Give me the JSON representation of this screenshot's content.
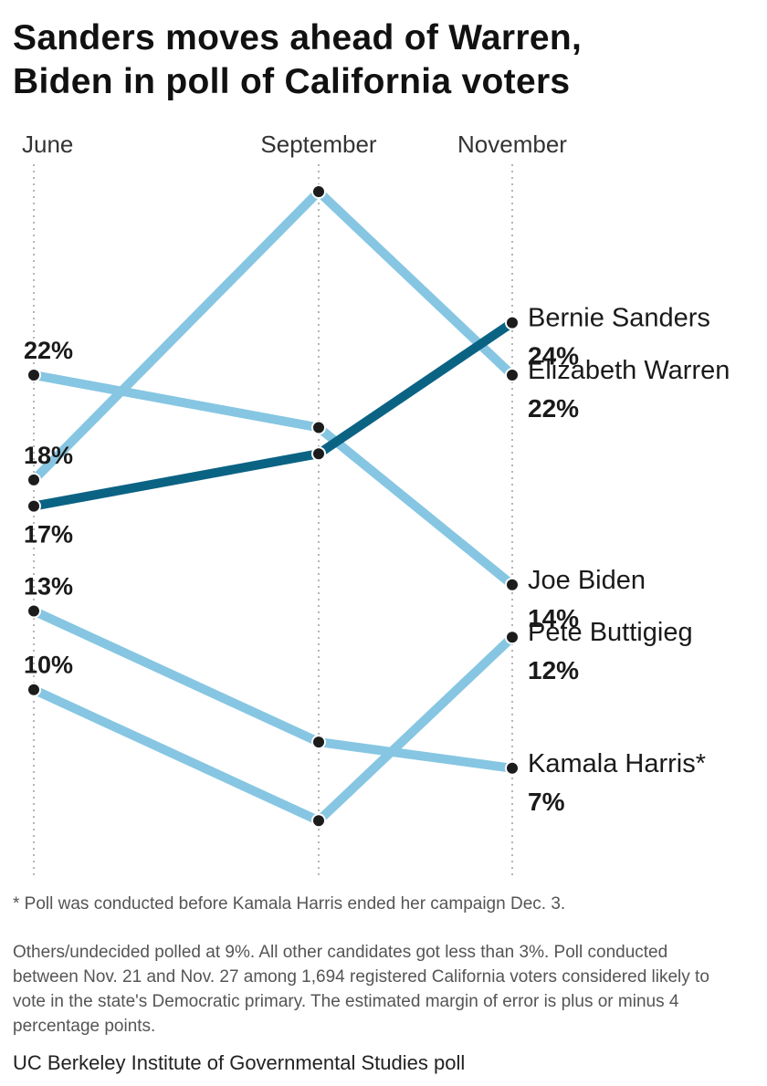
{
  "title_lines": [
    "Sanders moves ahead of Warren,",
    "Biden in poll of California voters"
  ],
  "chart_data": {
    "type": "line",
    "title": "Sanders moves ahead of Warren, Biden in poll of California voters",
    "x": [
      "June",
      "September",
      "November"
    ],
    "series": [
      {
        "name": "Bernie Sanders",
        "values": [
          17,
          19,
          24
        ],
        "color": "#0b6384",
        "highlight": true,
        "start_label": "17%",
        "end_label": "24%"
      },
      {
        "name": "Elizabeth Warren",
        "values": [
          18,
          29,
          22
        ],
        "color": "#86c6e2",
        "start_label": "18%",
        "end_label": "22%"
      },
      {
        "name": "Joe Biden",
        "values": [
          22,
          20,
          14
        ],
        "color": "#86c6e2",
        "start_label": "22%",
        "end_label": "14%"
      },
      {
        "name": "Pete Buttigieg",
        "values": [
          10,
          5,
          12
        ],
        "color": "#86c6e2",
        "start_label": "10%",
        "end_label": "12%"
      },
      {
        "name": "Kamala Harris*",
        "values": [
          13,
          8,
          7
        ],
        "color": "#86c6e2",
        "start_label": "13%",
        "end_label": "7%"
      }
    ],
    "ylim": [
      4,
      29
    ],
    "xlabel": "",
    "ylabel": "",
    "grid": "dotted vertical lines at each poll month",
    "legend": "direct labels at right end of lines"
  },
  "footnote": "* Poll was conducted before Kamala Harris ended her campaign Dec. 3.",
  "methodology": "Others/undecided polled at 9%. All other candidates got less than 3%. Poll conducted between Nov. 21 and Nov. 27 among 1,694 registered California voters considered likely to vote in the state's Democratic primary. The estimated margin of error is plus or minus 4 percentage points.",
  "source": "UC Berkeley Institute of Governmental Studies poll"
}
